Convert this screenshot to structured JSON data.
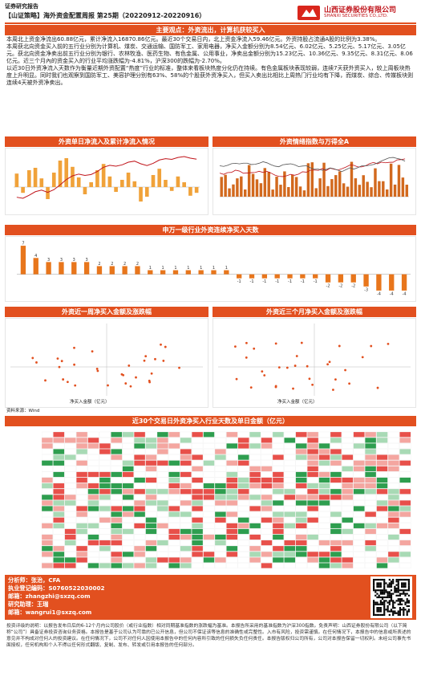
{
  "header": {
    "report_type": "证券研究报告",
    "report_title": "【山证策略】海外资金配置周报 第25期（20220912-20220916）",
    "company_cn": "山西证券股份有限公司",
    "company_en": "SHANXI SECURITIES CO.,LTD."
  },
  "main_view": {
    "title": "主要观点：外资流出，计算机获较买入",
    "p1": "本周北上资金净流出60.88亿元，累计净流入16870.86亿元。最近30个交易日内，北上资金净流入59.46亿元。外资持股占流通A股的比例为3.38%。",
    "p2": "本周获北向资金买入前的五行业分别为计算机、煤炭、交通运输、国防军工、家用电器，净买入金额分别为8.54亿元、6.02亿元、5.25亿元、5.17亿元、3.05亿元。获北向资金净卖出前五行业分别为银行、农林牧渔、医药生物、有色金属、公用事业，净卖出金额分别为15.23亿元、10.36亿元、9.35亿元、8.31亿元、8.06亿元。近三个月內的资金买入的行业平均涨跌幅为-4.81%，沪深300的跌幅为-2.70%。",
    "p3": "以近30日外资净流入天数作为衡量近期外资配置“热度”行业的标准，整体来看板块热度分化仍在持续。有色金属板块表现较弱，连续7天获外资买入，较上周板块热度上升明显。同时我们也观察到国防军工、美容护理分别有63%、58%的个股获外资净买入，但买入卖出比相比上周热门行业均有下降，而煤炭、综合、传媒板块则连续4天被外资净卖出。"
  },
  "charts": {
    "flow": {
      "title": "外资单日净流入及累计净流入情况"
    },
    "holding": {
      "title": "外资情绪指数与万得全A"
    },
    "industry_days": {
      "title": "申万一级行业外资连续净买入天数"
    },
    "week": {
      "title": "外资近一周净买入金额及涨跌幅",
      "xlabel": "净买入金额（亿元）"
    },
    "quarter": {
      "title": "外资近三个月净买入金额及涨跌幅",
      "xlabel": "净买入金额（亿元）"
    },
    "heatmap": {
      "title": "近30个交易日外资净买入行业天数及单日金额（亿元）"
    }
  },
  "chart_data": [
    {
      "type": "bar",
      "title": "申万一级行业外资连续净买入天数",
      "values": [
        7,
        4,
        3,
        3,
        3,
        3,
        2,
        2,
        2,
        2,
        1,
        1,
        1,
        1,
        1,
        1,
        1,
        -1,
        -1,
        -1,
        -1,
        -1,
        -1,
        -1,
        -2,
        -2,
        -2,
        -3,
        -4,
        -4,
        -4
      ],
      "ylim": [
        -5,
        8
      ],
      "colors": {
        "bar": "#e8761c"
      }
    },
    {
      "type": "bar",
      "title": "外资单日净流入及累计净流入情况",
      "values": [
        28,
        -12,
        35,
        40,
        18,
        -25,
        30,
        55,
        60,
        42,
        20,
        -15,
        10,
        35,
        48,
        22,
        -10,
        15,
        30,
        12,
        -30,
        -20,
        25,
        38,
        15,
        -8,
        22,
        10,
        -18,
        -12
      ],
      "ylim": [
        -40,
        70
      ]
    }
  ],
  "legend": {
    "source": "资料来源：Wind"
  },
  "analyst": {
    "line1": "分析师：张治，CFA",
    "line2": "执业登记编码：S0760522030002",
    "line3": "邮箱：zhangzhi@sxzq.com",
    "line4": "研究助理：王瑞",
    "line5": "邮箱：wangrui1@sxzq.com"
  },
  "disclaimer": "投资评级的说明：以报告发布日后的6-12个月内公司股价（或行业指数）相对同期基准指数的涨跌幅为基准。本报告所采用的基准指数为沪深300指数。免责声明：山西证券股份有限公司（以下简称“公司”）具备证券投资咨询业务资格。本报告是基于公司认为可靠的已公开信息，但公司不保证该等信息的准确性或完整性。入市有风险，投资需谨慎。在任何情况下，本报告中的信息或所表述的意见并不构成对任何人的投资建议。在任何情况下，公司不对任何人因使用本报告中的任何内容所引致的任何损失负任何责任。本报告版权归公司所有，公司对本报告保留一切权利。未经公司事先书面授权，任何机构和个人不得以任何形式翻版、复制、发布、转发或引用本报告的任何部分。"
}
